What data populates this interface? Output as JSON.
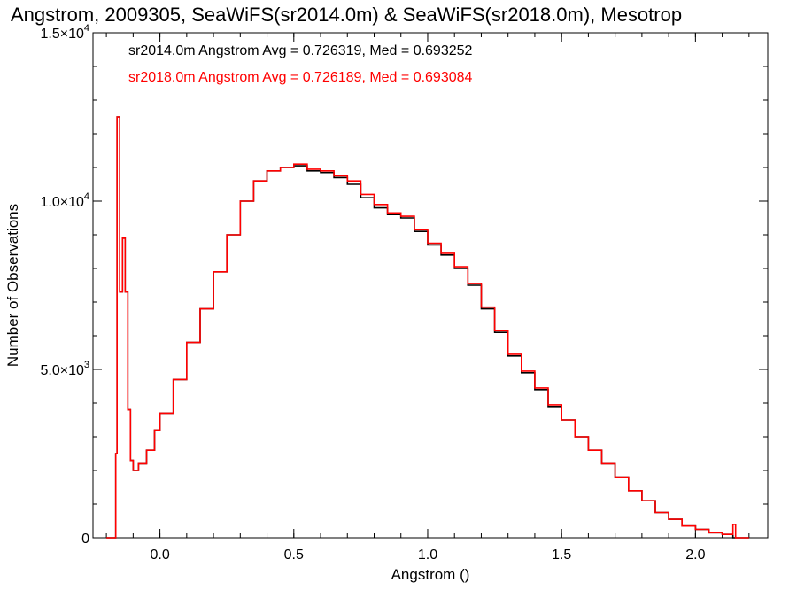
{
  "chart_data": {
    "type": "line",
    "title": "Angstrom, 2009305, SeaWiFS(sr2014.0m) & SeaWiFS(sr2018.0m), Mesotrop",
    "xlabel": "Angstrom ()",
    "ylabel": "Number of Observations",
    "xlim": [
      -0.25,
      2.27
    ],
    "ylim": [
      0,
      15000
    ],
    "x_ticks": [
      {
        "value": 0.0,
        "label": "0.0"
      },
      {
        "value": 0.5,
        "label": "0.5"
      },
      {
        "value": 1.0,
        "label": "1.0"
      },
      {
        "value": 1.5,
        "label": "1.5"
      },
      {
        "value": 2.0,
        "label": "2.0"
      }
    ],
    "y_ticks": [
      {
        "value": 0,
        "mantissa": "0",
        "exp": ""
      },
      {
        "value": 5000,
        "mantissa": "5.0×10",
        "exp": "3"
      },
      {
        "value": 10000,
        "mantissa": "1.0×10",
        "exp": "4"
      },
      {
        "value": 15000,
        "mantissa": "1.5×10",
        "exp": "4"
      }
    ],
    "legend": [
      {
        "text": "sr2014.0m Angstrom Avg = 0.726319, Med = 0.693252",
        "color": "#000000"
      },
      {
        "text": "sr2018.0m Angstrom Avg = 0.726189, Med = 0.693084",
        "color": "#ff0000"
      }
    ],
    "series": [
      {
        "color": "#000000",
        "x": [
          -0.2,
          -0.17,
          -0.165,
          -0.16,
          -0.15,
          -0.14,
          -0.13,
          -0.12,
          -0.11,
          -0.1,
          -0.09,
          -0.08,
          -0.05,
          -0.02,
          0.0,
          0.05,
          0.1,
          0.15,
          0.2,
          0.25,
          0.3,
          0.35,
          0.4,
          0.45,
          0.5,
          0.55,
          0.6,
          0.65,
          0.7,
          0.75,
          0.8,
          0.85,
          0.9,
          0.95,
          1.0,
          1.05,
          1.1,
          1.15,
          1.2,
          1.25,
          1.3,
          1.35,
          1.4,
          1.45,
          1.5,
          1.55,
          1.6,
          1.65,
          1.7,
          1.75,
          1.8,
          1.85,
          1.9,
          1.95,
          2.0,
          2.05,
          2.1,
          2.14,
          2.15,
          2.2
        ],
        "y": [
          0,
          0,
          2500,
          12500,
          7300,
          8900,
          7300,
          3800,
          2300,
          2000,
          2000,
          2200,
          2600,
          3200,
          3700,
          4700,
          5800,
          6800,
          7900,
          9000,
          10000,
          10600,
          10900,
          11000,
          11050,
          10900,
          10850,
          10700,
          10500,
          10100,
          9800,
          9600,
          9500,
          9100,
          8700,
          8400,
          8000,
          7500,
          6800,
          6100,
          5400,
          4900,
          4400,
          3900,
          3500,
          3000,
          2600,
          2200,
          1800,
          1400,
          1100,
          750,
          550,
          350,
          250,
          150,
          100,
          0,
          0,
          0
        ]
      },
      {
        "color": "#ff0000",
        "x": [
          -0.2,
          -0.17,
          -0.165,
          -0.16,
          -0.15,
          -0.14,
          -0.13,
          -0.12,
          -0.11,
          -0.1,
          -0.09,
          -0.08,
          -0.05,
          -0.02,
          0.0,
          0.05,
          0.1,
          0.15,
          0.2,
          0.25,
          0.3,
          0.35,
          0.4,
          0.45,
          0.5,
          0.55,
          0.6,
          0.65,
          0.7,
          0.75,
          0.8,
          0.85,
          0.9,
          0.95,
          1.0,
          1.05,
          1.1,
          1.15,
          1.2,
          1.25,
          1.3,
          1.35,
          1.4,
          1.45,
          1.5,
          1.55,
          1.6,
          1.65,
          1.7,
          1.75,
          1.8,
          1.85,
          1.9,
          1.95,
          2.0,
          2.05,
          2.1,
          2.14,
          2.15,
          2.2
        ],
        "y": [
          0,
          0,
          2500,
          12500,
          7300,
          8900,
          7300,
          3800,
          2300,
          2000,
          2000,
          2200,
          2600,
          3200,
          3700,
          4700,
          5800,
          6800,
          7900,
          9000,
          10000,
          10600,
          10900,
          11000,
          11100,
          10950,
          10900,
          10750,
          10600,
          10200,
          9900,
          9650,
          9550,
          9150,
          8750,
          8450,
          8050,
          7550,
          6850,
          6150,
          5450,
          4950,
          4450,
          3950,
          3500,
          3000,
          2600,
          2200,
          1800,
          1400,
          1100,
          750,
          550,
          350,
          250,
          150,
          100,
          400,
          0,
          0
        ]
      }
    ]
  }
}
